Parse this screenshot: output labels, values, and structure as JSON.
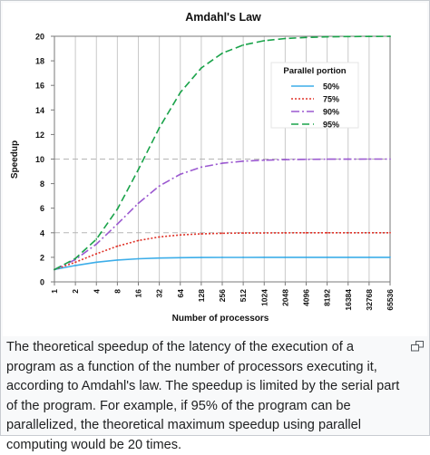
{
  "chart_data": {
    "type": "line",
    "title": "Amdahl's Law",
    "xlabel": "Number of processors",
    "ylabel": "Speedup",
    "x_scale": "log2",
    "x": [
      1,
      2,
      4,
      8,
      16,
      32,
      64,
      128,
      256,
      512,
      1024,
      2048,
      4096,
      8192,
      16384,
      32768,
      65536
    ],
    "x_tick_labels": [
      "1",
      "2",
      "4",
      "8",
      "16",
      "32",
      "64",
      "128",
      "256",
      "512",
      "1024",
      "2048",
      "4096",
      "8192",
      "16384",
      "32768",
      "65536"
    ],
    "ylim": [
      0,
      20
    ],
    "y_ticks": [
      0,
      2,
      4,
      6,
      8,
      10,
      12,
      14,
      16,
      18,
      20
    ],
    "grid": "vertical lines at every x tick; dashed horizontal lines at y = 4, 10 and 20",
    "legend": {
      "title": "Parallel portion",
      "placement": "right, upper half"
    },
    "series": [
      {
        "name": "50%",
        "color": "#3daee9",
        "dash": "solid",
        "values": [
          1.0,
          1.333,
          1.6,
          1.778,
          1.882,
          1.939,
          1.969,
          1.984,
          1.992,
          1.996,
          1.998,
          1.999,
          2.0,
          2.0,
          2.0,
          2.0,
          2.0
        ]
      },
      {
        "name": "75%",
        "color": "#e0352b",
        "dash": "dotted",
        "values": [
          1.0,
          1.6,
          2.286,
          2.909,
          3.368,
          3.657,
          3.821,
          3.908,
          3.954,
          3.977,
          3.988,
          3.994,
          3.997,
          3.999,
          3.999,
          4.0,
          4.0
        ]
      },
      {
        "name": "90%",
        "color": "#9b59d0",
        "dash": "dashdot",
        "values": [
          1.0,
          1.818,
          3.077,
          4.706,
          6.4,
          7.805,
          8.767,
          9.343,
          9.66,
          9.827,
          9.912,
          9.956,
          9.978,
          9.989,
          9.995,
          9.997,
          9.999
        ]
      },
      {
        "name": "95%",
        "color": "#1aa34a",
        "dash": "dashed",
        "values": [
          1.0,
          1.905,
          3.478,
          5.926,
          9.143,
          12.549,
          15.422,
          17.414,
          18.618,
          19.284,
          19.635,
          19.816,
          19.907,
          19.953,
          19.977,
          19.988,
          19.994
        ]
      }
    ]
  },
  "caption": {
    "text": "The theoretical speedup of the latency of the execution of a program as a function of the number of processors executing it, according to Amdahl's law. The speedup is limited by the serial part of the program. For example, if 95% of the program can be parallelized, the theoretical maximum speedup using parallel computing would be 20 times."
  }
}
